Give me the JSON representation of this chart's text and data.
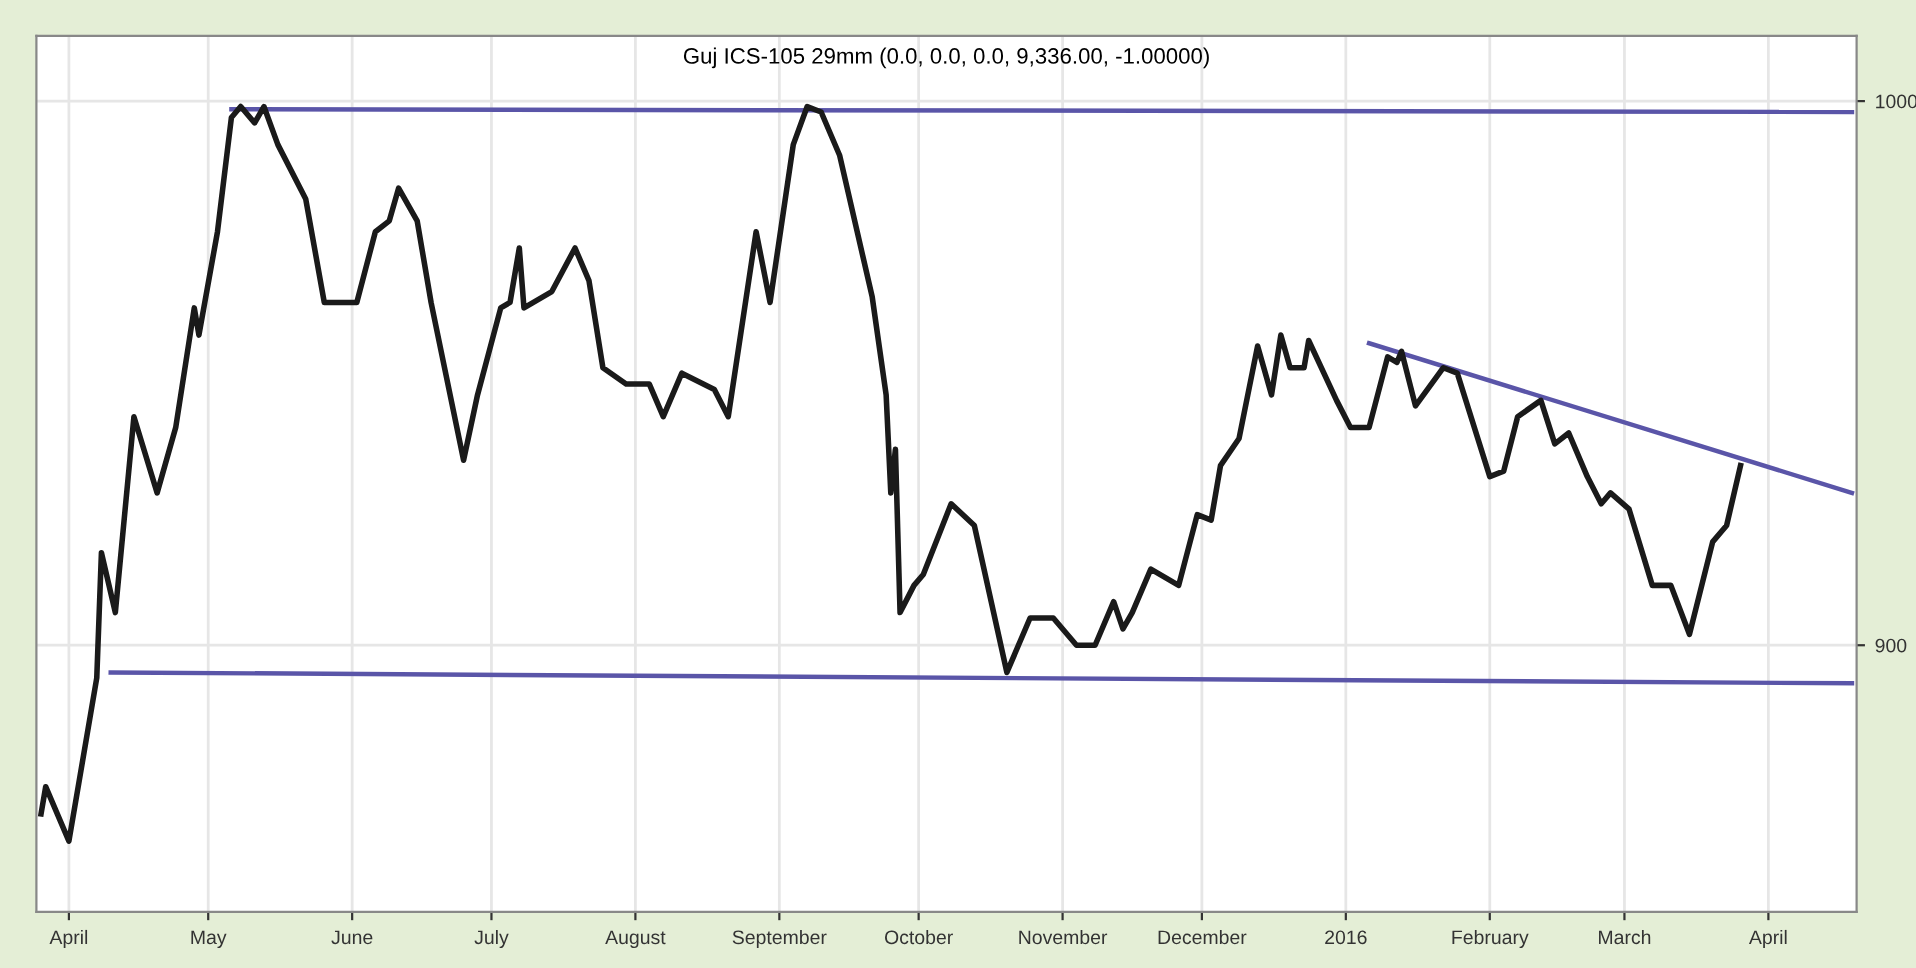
{
  "chart_data": {
    "type": "line",
    "title": "Guj ICS-105 29mm (0.0, 0.0, 0.0, 9,336.00, -1.00000)",
    "x": [
      "2015-03-26",
      "2015-03-27",
      "2015-04-01",
      "2015-04-07",
      "2015-04-08",
      "2015-04-11",
      "2015-04-15",
      "2015-04-20",
      "2015-04-24",
      "2015-04-28",
      "2015-04-29",
      "2015-05-03",
      "2015-05-06",
      "2015-05-08",
      "2015-05-11",
      "2015-05-13",
      "2015-05-16",
      "2015-05-22",
      "2015-05-26",
      "2015-06-02",
      "2015-06-06",
      "2015-06-09",
      "2015-06-11",
      "2015-06-15",
      "2015-06-18",
      "2015-06-25",
      "2015-06-28",
      "2015-07-03",
      "2015-07-05",
      "2015-07-07",
      "2015-07-08",
      "2015-07-14",
      "2015-07-19",
      "2015-07-22",
      "2015-07-25",
      "2015-07-30",
      "2015-08-04",
      "2015-08-07",
      "2015-08-11",
      "2015-08-18",
      "2015-08-21",
      "2015-08-27",
      "2015-08-30",
      "2015-09-04",
      "2015-09-07",
      "2015-09-10",
      "2015-09-14",
      "2015-09-21",
      "2015-09-24",
      "2015-09-25",
      "2015-09-26",
      "2015-09-27",
      "2015-09-30",
      "2015-10-02",
      "2015-10-08",
      "2015-10-13",
      "2015-10-20",
      "2015-10-25",
      "2015-10-30",
      "2015-11-04",
      "2015-11-08",
      "2015-11-12",
      "2015-11-14",
      "2015-11-16",
      "2015-11-20",
      "2015-11-26",
      "2015-11-30",
      "2015-12-03",
      "2015-12-05",
      "2015-12-09",
      "2015-12-13",
      "2015-12-16",
      "2015-12-18",
      "2015-12-20",
      "2015-12-23",
      "2015-12-24",
      "2015-12-30",
      "2016-01-02",
      "2016-01-06",
      "2016-01-10",
      "2016-01-12",
      "2016-01-13",
      "2016-01-16",
      "2016-01-22",
      "2016-01-25",
      "2016-02-01",
      "2016-02-04",
      "2016-02-07",
      "2016-02-12",
      "2016-02-15",
      "2016-02-18",
      "2016-02-22",
      "2016-02-25",
      "2016-02-27",
      "2016-03-02",
      "2016-03-07",
      "2016-03-11",
      "2016-03-15",
      "2016-03-20",
      "2016-03-23",
      "2016-03-26"
    ],
    "series": [
      {
        "color": "#1a1a1a",
        "values": [
          869,
          874,
          864,
          894,
          917,
          906,
          942,
          928,
          940,
          962,
          957,
          976,
          997,
          999,
          996,
          999,
          992,
          982,
          963,
          963,
          976,
          978,
          984,
          978,
          963,
          934,
          946,
          962,
          963,
          973,
          962,
          965,
          973,
          967,
          951,
          948,
          948,
          942,
          950,
          947,
          942,
          976,
          963,
          992,
          999,
          998,
          990,
          964,
          946,
          928,
          936,
          906,
          911,
          913,
          926,
          922,
          895,
          905,
          905,
          900,
          900,
          908,
          903,
          906,
          914,
          911,
          924,
          923,
          933,
          938,
          955,
          946,
          957,
          951,
          951,
          956,
          945,
          940,
          940,
          953,
          952,
          954,
          944,
          951,
          950,
          931,
          932,
          942,
          945,
          937,
          939,
          931,
          926,
          928,
          925,
          911,
          911,
          902,
          919,
          922,
          933
        ]
      },
      {
        "type": "line",
        "color": "#5a55a8",
        "x": [
          "2015-05-06",
          "2016-04-19"
        ],
        "values": [
          998.5,
          998
        ]
      },
      {
        "type": "line",
        "color": "#5a55a8",
        "x": [
          "2015-04-10",
          "2016-04-19"
        ],
        "values": [
          895,
          893
        ]
      },
      {
        "type": "line",
        "color": "#5a55a8",
        "x": [
          "2016-01-06",
          "2016-04-19"
        ],
        "values": [
          955.5,
          928
        ]
      }
    ],
    "xlim": [
      "2015-03-25",
      "2016-04-20"
    ],
    "xticks": [
      {
        "value": "2015-04-01",
        "label": "April"
      },
      {
        "value": "2015-05-01",
        "label": "May"
      },
      {
        "value": "2015-06-01",
        "label": "June"
      },
      {
        "value": "2015-07-01",
        "label": "July"
      },
      {
        "value": "2015-08-01",
        "label": "August"
      },
      {
        "value": "2015-09-01",
        "label": "September"
      },
      {
        "value": "2015-10-01",
        "label": "October"
      },
      {
        "value": "2015-11-01",
        "label": "November"
      },
      {
        "value": "2015-12-01",
        "label": "December"
      },
      {
        "value": "2016-01-01",
        "label": "2016"
      },
      {
        "value": "2016-02-01",
        "label": "February"
      },
      {
        "value": "2016-03-01",
        "label": "March"
      },
      {
        "value": "2016-04-01",
        "label": "April"
      }
    ],
    "ylim": [
      851,
      1012
    ],
    "yticks": [
      900,
      1000
    ],
    "grid": true,
    "legend": false,
    "marker": "none",
    "line_style": "solid"
  }
}
